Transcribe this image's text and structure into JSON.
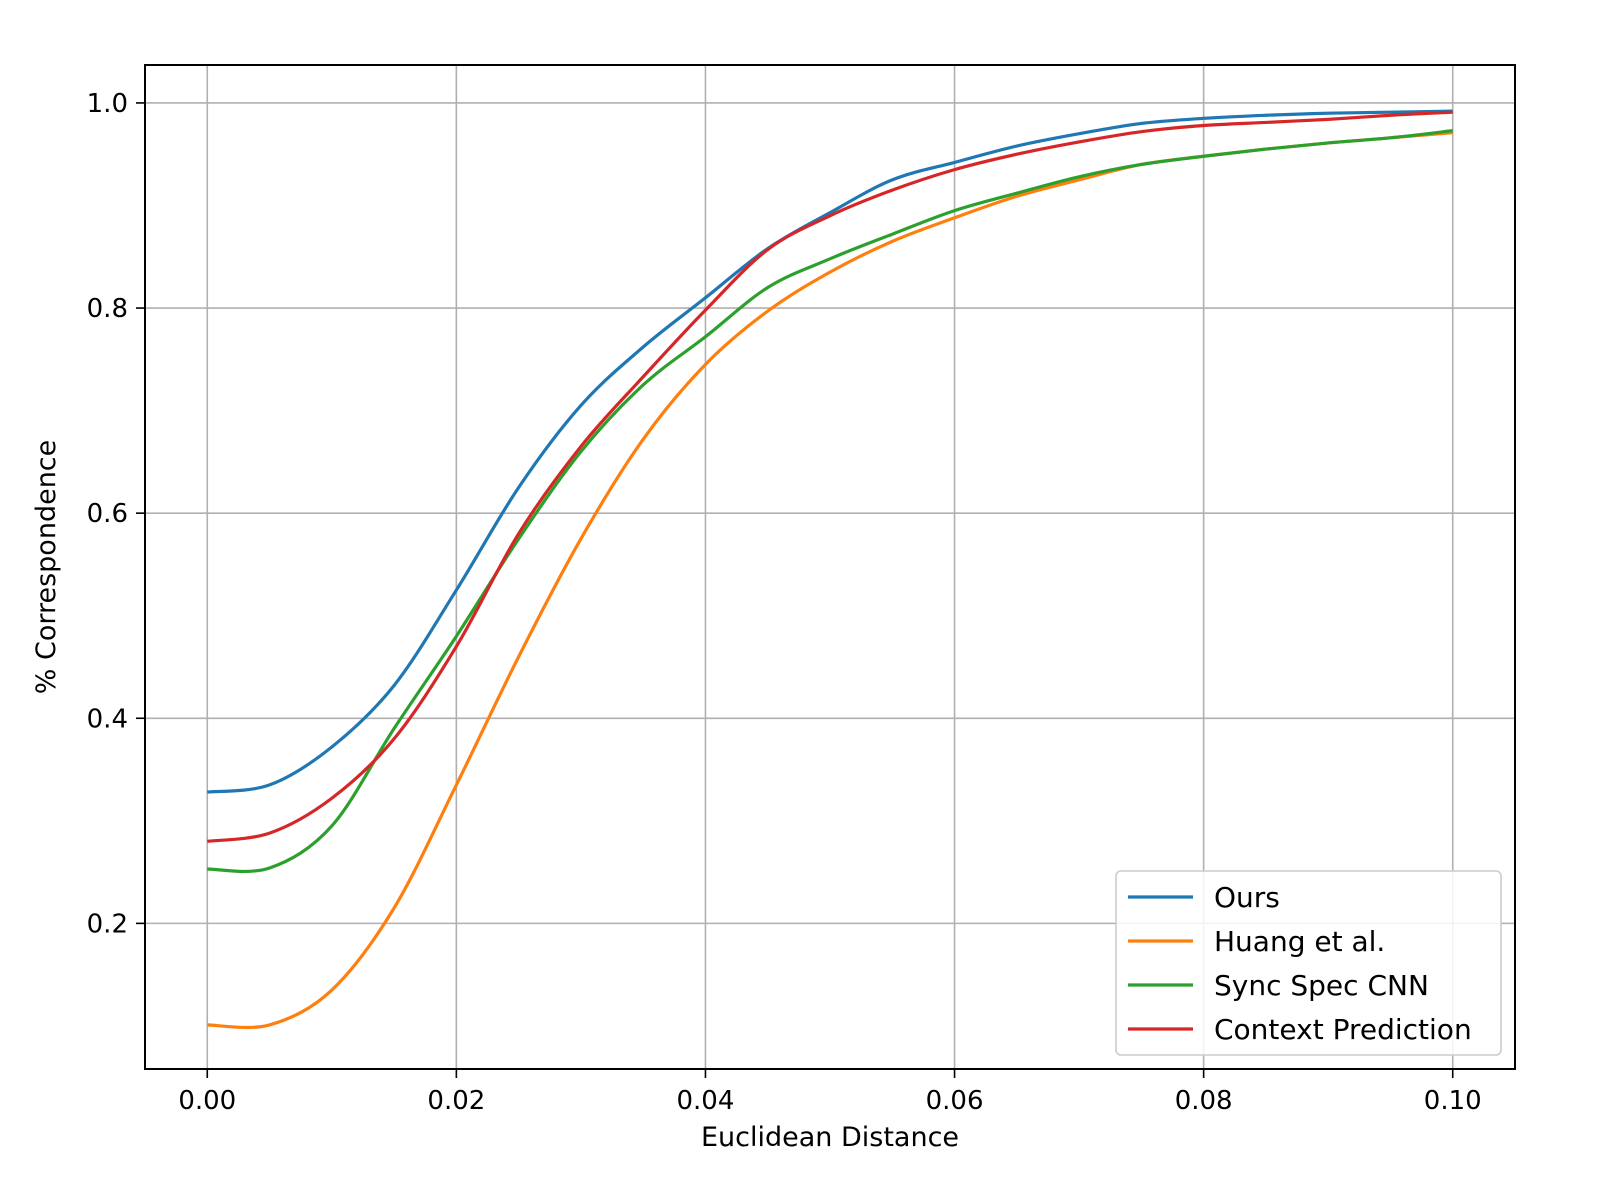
{
  "chart_data": {
    "type": "line",
    "title": "",
    "xlabel": "Euclidean Distance",
    "ylabel": "% Correspondence",
    "xlim": [
      -0.005,
      0.105
    ],
    "ylim": [
      0.058,
      1.037
    ],
    "xticks": [
      0.0,
      0.02,
      0.04,
      0.06,
      0.08,
      0.1
    ],
    "xtick_labels": [
      "0.00",
      "0.02",
      "0.04",
      "0.06",
      "0.08",
      "0.10"
    ],
    "yticks": [
      0.2,
      0.4,
      0.6,
      0.8,
      1.0
    ],
    "ytick_labels": [
      "0.2",
      "0.4",
      "0.6",
      "0.8",
      "1.0"
    ],
    "grid": true,
    "legend_position": "lower-right",
    "x": [
      0.0,
      0.005,
      0.01,
      0.015,
      0.02,
      0.025,
      0.03,
      0.035,
      0.04,
      0.045,
      0.05,
      0.055,
      0.06,
      0.065,
      0.07,
      0.075,
      0.08,
      0.085,
      0.09,
      0.095,
      0.1
    ],
    "series": [
      {
        "name": "Ours",
        "color": "#1f77b4",
        "values": [
          0.328,
          0.335,
          0.372,
          0.432,
          0.525,
          0.625,
          0.705,
          0.762,
          0.81,
          0.858,
          0.893,
          0.925,
          0.942,
          0.958,
          0.97,
          0.98,
          0.985,
          0.988,
          0.99,
          0.991,
          0.992
        ]
      },
      {
        "name": "Huang et al.",
        "color": "#ff7f0e",
        "values": [
          0.101,
          0.101,
          0.135,
          0.215,
          0.335,
          0.46,
          0.575,
          0.672,
          0.745,
          0.797,
          0.835,
          0.865,
          0.888,
          0.909,
          0.925,
          0.94,
          0.948,
          0.955,
          0.961,
          0.966,
          0.971
        ]
      },
      {
        "name": "Sync Spec CNN",
        "color": "#2ca02c",
        "values": [
          0.253,
          0.254,
          0.295,
          0.39,
          0.48,
          0.575,
          0.66,
          0.725,
          0.772,
          0.82,
          0.848,
          0.872,
          0.895,
          0.912,
          0.928,
          0.94,
          0.948,
          0.955,
          0.961,
          0.966,
          0.973
        ]
      },
      {
        "name": "Context Prediction",
        "color": "#d62728",
        "values": [
          0.28,
          0.288,
          0.322,
          0.38,
          0.47,
          0.58,
          0.665,
          0.733,
          0.798,
          0.857,
          0.89,
          0.915,
          0.935,
          0.95,
          0.962,
          0.972,
          0.978,
          0.981,
          0.984,
          0.988,
          0.991
        ]
      }
    ]
  }
}
